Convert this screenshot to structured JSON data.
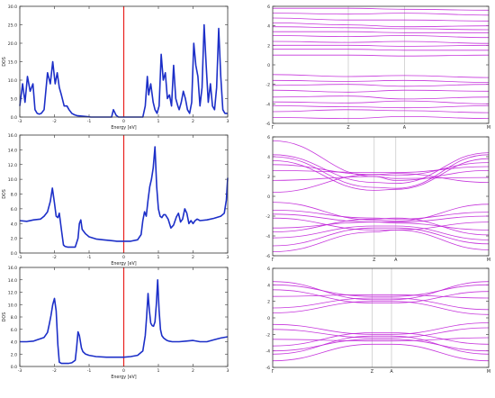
{
  "figure": {
    "name": "dos-and-band-structure-figure"
  },
  "chart_data": [
    {
      "id": "dos-1",
      "type": "line",
      "ylabel": "DOS",
      "xlabel": "Energy [eV]",
      "xlim": [
        -3,
        3
      ],
      "ylim": [
        0,
        30
      ],
      "xticks": [
        -3,
        -2,
        -1,
        0,
        1,
        2,
        3
      ],
      "yticks": [
        0.0,
        5.0,
        10.0,
        15.0,
        20.0,
        25.0,
        30.0
      ],
      "ytick_labels": [
        "0.0",
        "5.0",
        "10.0",
        "15.0",
        "20.0",
        "25.0",
        "30.0"
      ],
      "fermi_level": 0,
      "fermi_color": "#e8201c",
      "line_color": "#1c2fc8",
      "series": [
        {
          "x": [
            -3.0,
            -2.92,
            -2.85,
            -2.78,
            -2.7,
            -2.62,
            -2.56,
            -2.5,
            -2.44,
            -2.38,
            -2.3,
            -2.2,
            -2.12,
            -2.05,
            -1.98,
            -1.92,
            -1.86,
            -1.8,
            -1.72,
            -1.64,
            -1.58,
            -1.5,
            -1.42,
            -1.35,
            -1.25,
            -1.15,
            -1.05,
            -0.95,
            -0.85,
            -0.75,
            -0.65,
            -0.55,
            -0.45,
            -0.35,
            -0.3,
            -0.22,
            -0.15,
            -0.1,
            0.0,
            0.2,
            0.4,
            0.55,
            0.62,
            0.68,
            0.72,
            0.78,
            0.85,
            0.9,
            0.96,
            1.02,
            1.08,
            1.14,
            1.2,
            1.26,
            1.32,
            1.38,
            1.44,
            1.5,
            1.56,
            1.6,
            1.66,
            1.72,
            1.78,
            1.84,
            1.9,
            1.96,
            2.02,
            2.08,
            2.14,
            2.2,
            2.26,
            2.32,
            2.38,
            2.44,
            2.5,
            2.56,
            2.62,
            2.68,
            2.74,
            2.8,
            2.86,
            2.92,
            3.0
          ],
          "y": [
            3,
            9,
            4,
            11,
            7,
            9,
            2,
            1,
            0.8,
            1,
            2,
            12,
            9,
            15,
            9,
            12,
            8,
            6,
            3,
            3,
            2,
            1,
            0.6,
            0.4,
            0.3,
            0.2,
            0.1,
            0,
            0,
            0,
            0,
            0,
            0,
            0,
            2,
            0.5,
            0,
            0,
            0,
            0,
            0,
            0,
            3,
            11,
            6,
            9,
            4,
            2,
            1,
            3,
            17,
            10,
            12,
            5,
            6,
            3,
            14,
            5,
            3,
            2,
            4,
            7,
            5,
            2,
            1,
            4,
            20,
            14,
            11,
            3,
            8,
            25,
            14,
            4,
            9,
            3,
            2,
            8,
            24,
            11,
            2,
            1,
            1
          ]
        }
      ]
    },
    {
      "id": "dos-2",
      "type": "line",
      "ylabel": "DOS",
      "xlabel": "Energy [eV]",
      "xlim": [
        -3,
        3
      ],
      "ylim": [
        0,
        16
      ],
      "xticks": [
        -3,
        -2,
        -1,
        0,
        1,
        2,
        3
      ],
      "yticks": [
        0.0,
        2.0,
        4.0,
        6.0,
        8.0,
        10.0,
        12.0,
        14.0,
        16.0
      ],
      "ytick_labels": [
        "0.0",
        "2.0",
        "4.0",
        "6.0",
        "8.0",
        "10.0",
        "12.0",
        "14.0",
        "16.0"
      ],
      "fermi_level": 0,
      "fermi_color": "#e8201c",
      "line_color": "#1c2fc8",
      "series": [
        {
          "x": [
            -3.0,
            -2.8,
            -2.6,
            -2.4,
            -2.3,
            -2.2,
            -2.12,
            -2.06,
            -2.0,
            -1.95,
            -1.9,
            -1.86,
            -1.8,
            -1.74,
            -1.7,
            -1.62,
            -1.5,
            -1.4,
            -1.32,
            -1.28,
            -1.24,
            -1.2,
            -1.1,
            -1.0,
            -0.8,
            -0.6,
            -0.4,
            -0.2,
            0.0,
            0.2,
            0.4,
            0.5,
            0.55,
            0.6,
            0.65,
            0.7,
            0.75,
            0.8,
            0.85,
            0.9,
            0.95,
            1.0,
            1.05,
            1.1,
            1.15,
            1.2,
            1.28,
            1.36,
            1.44,
            1.52,
            1.58,
            1.64,
            1.7,
            1.76,
            1.82,
            1.88,
            1.94,
            2.0,
            2.06,
            2.12,
            2.2,
            2.4,
            2.6,
            2.8,
            2.9,
            2.96,
            3.0
          ],
          "y": [
            4.4,
            4.3,
            4.5,
            4.6,
            5.0,
            5.6,
            7.0,
            8.8,
            6.8,
            5.0,
            4.8,
            5.4,
            3.2,
            1.1,
            0.9,
            0.8,
            0.8,
            0.8,
            2.0,
            4.0,
            4.5,
            3.2,
            2.6,
            2.2,
            1.9,
            1.8,
            1.7,
            1.6,
            1.6,
            1.6,
            1.8,
            2.5,
            4.4,
            5.6,
            5.0,
            7.2,
            9.0,
            10.0,
            11.5,
            14.4,
            9.0,
            6.0,
            5.0,
            4.8,
            5.2,
            5.2,
            4.6,
            3.4,
            3.8,
            4.9,
            5.4,
            4.2,
            4.6,
            6.0,
            5.4,
            4.0,
            4.4,
            4.0,
            4.4,
            4.6,
            4.4,
            4.5,
            4.7,
            5.0,
            5.4,
            7.2,
            10.2
          ]
        }
      ]
    },
    {
      "id": "dos-3",
      "type": "line",
      "ylabel": "DOS",
      "xlabel": "Energy [eV]",
      "xlim": [
        -3,
        3
      ],
      "ylim": [
        0,
        16
      ],
      "xticks": [
        -3,
        -2,
        -1,
        0,
        1,
        2,
        3
      ],
      "yticks": [
        0.0,
        2.0,
        4.0,
        6.0,
        8.0,
        10.0,
        12.0,
        14.0,
        16.0
      ],
      "ytick_labels": [
        "0.0",
        "2.0",
        "4.0",
        "6.0",
        "8.0",
        "10.0",
        "12.0",
        "14.0",
        "16.0"
      ],
      "fermi_level": 0,
      "fermi_color": "#e8201c",
      "line_color": "#1c2fc8",
      "series": [
        {
          "x": [
            -3.0,
            -2.8,
            -2.6,
            -2.5,
            -2.4,
            -2.3,
            -2.2,
            -2.15,
            -2.1,
            -2.05,
            -2.0,
            -1.95,
            -1.9,
            -1.86,
            -1.8,
            -1.7,
            -1.6,
            -1.5,
            -1.4,
            -1.36,
            -1.32,
            -1.28,
            -1.22,
            -1.18,
            -1.1,
            -1.0,
            -0.8,
            -0.5,
            -0.2,
            0.0,
            0.2,
            0.4,
            0.55,
            0.62,
            0.66,
            0.7,
            0.74,
            0.78,
            0.82,
            0.86,
            0.9,
            0.94,
            0.98,
            1.02,
            1.06,
            1.1,
            1.15,
            1.2,
            1.25,
            1.3,
            1.4,
            1.6,
            1.8,
            2.0,
            2.2,
            2.4,
            2.6,
            2.8,
            3.0
          ],
          "y": [
            4.0,
            4.0,
            4.1,
            4.3,
            4.5,
            4.7,
            5.5,
            6.8,
            8.2,
            10.0,
            11.0,
            9.0,
            3.5,
            0.7,
            0.5,
            0.5,
            0.5,
            0.6,
            1.0,
            3.0,
            5.6,
            5.0,
            3.0,
            2.4,
            2.0,
            1.8,
            1.6,
            1.5,
            1.5,
            1.5,
            1.6,
            1.8,
            2.5,
            5.0,
            8.0,
            11.8,
            9.0,
            7.0,
            6.6,
            6.5,
            7.2,
            10.0,
            14.0,
            9.0,
            6.0,
            5.0,
            4.6,
            4.4,
            4.2,
            4.1,
            4.0,
            4.0,
            4.1,
            4.2,
            4.0,
            4.0,
            4.3,
            4.6,
            4.8
          ]
        }
      ]
    },
    {
      "id": "bands-1",
      "type": "line",
      "xlabel": "",
      "ylabel": "",
      "ylim": [
        -6,
        6
      ],
      "yticks": [
        -6,
        -4,
        -2,
        0,
        2,
        4,
        6
      ],
      "kpath_labels": [
        "Γ",
        "Z",
        "A",
        "M"
      ],
      "kpath_positions": [
        0.0,
        0.35,
        0.61,
        1.0
      ],
      "line_color": "#c020d8",
      "band_energies_at_kpoints": [
        [
          5.8,
          5.8,
          5.7,
          5.6
        ],
        [
          5.3,
          5.2,
          5.3,
          5.1
        ],
        [
          4.8,
          4.6,
          4.6,
          4.5
        ],
        [
          4.3,
          4.1,
          3.9,
          4.0
        ],
        [
          3.9,
          3.8,
          3.7,
          3.6
        ],
        [
          3.4,
          3.4,
          3.3,
          3.3
        ],
        [
          3.0,
          2.9,
          3.0,
          2.8
        ],
        [
          2.4,
          2.3,
          2.4,
          2.2
        ],
        [
          2.0,
          2.0,
          1.9,
          2.0
        ],
        [
          1.6,
          1.6,
          1.5,
          1.5
        ],
        [
          1.0,
          1.0,
          0.9,
          1.0
        ],
        [
          -1.0,
          -1.2,
          -1.1,
          -1.3
        ],
        [
          -1.6,
          -1.7,
          -1.6,
          -1.8
        ],
        [
          -2.1,
          -2.0,
          -2.2,
          -2.0
        ],
        [
          -2.6,
          -2.8,
          -2.6,
          -2.7
        ],
        [
          -3.3,
          -3.2,
          -3.5,
          -3.3
        ],
        [
          -3.8,
          -3.9,
          -3.7,
          -4.0
        ],
        [
          -4.2,
          -4.3,
          -4.4,
          -4.2
        ],
        [
          -4.8,
          -4.6,
          -4.7,
          -4.9
        ],
        [
          -5.4,
          -5.5,
          -5.3,
          -5.5
        ]
      ]
    },
    {
      "id": "bands-2",
      "type": "line",
      "xlabel": "",
      "ylabel": "",
      "ylim": [
        -6,
        6
      ],
      "yticks": [
        -6,
        -4,
        -2,
        0,
        2,
        4,
        6
      ],
      "kpath_labels": [
        "Γ",
        "Z",
        "A",
        "M"
      ],
      "kpath_positions": [
        0.0,
        0.47,
        0.57,
        1.0
      ],
      "line_color": "#c020d8",
      "band_energies_at_kpoints": [
        [
          4.2,
          1.4,
          1.3,
          4.4
        ],
        [
          4.0,
          0.9,
          0.8,
          4.2
        ],
        [
          3.6,
          0.6,
          0.7,
          3.8
        ],
        [
          3.2,
          2.2,
          2.1,
          3.4
        ],
        [
          2.6,
          2.4,
          2.4,
          3.0
        ],
        [
          5.6,
          2.0,
          1.6,
          2.6
        ],
        [
          1.6,
          2.0,
          1.8,
          1.9
        ],
        [
          0.4,
          2.2,
          2.3,
          1.4
        ],
        [
          -0.6,
          -2.4,
          -2.5,
          -0.8
        ],
        [
          -1.4,
          -2.2,
          -2.3,
          -1.6
        ],
        [
          -1.8,
          -2.6,
          -2.6,
          -2.0
        ],
        [
          -2.2,
          -3.4,
          -3.4,
          -2.6
        ],
        [
          -3.2,
          -2.6,
          -2.7,
          -3.4
        ],
        [
          -3.6,
          -2.3,
          -2.2,
          -3.9
        ],
        [
          -4.2,
          -3.0,
          -3.0,
          -4.4
        ],
        [
          -5.0,
          -3.2,
          -3.2,
          -4.8
        ],
        [
          -5.6,
          -3.6,
          -3.4,
          -5.4
        ]
      ]
    },
    {
      "id": "bands-3",
      "type": "line",
      "xlabel": "",
      "ylabel": "",
      "ylim": [
        -6,
        6
      ],
      "yticks": [
        -6,
        -4,
        -2,
        0,
        2,
        4,
        6
      ],
      "kpath_labels": [
        "Γ",
        "Z",
        "A",
        "M"
      ],
      "kpath_positions": [
        0.0,
        0.46,
        0.55,
        1.0
      ],
      "line_color": "#c020d8",
      "band_energies_at_kpoints": [
        [
          4.4,
          2.2,
          2.2,
          4.4
        ],
        [
          4.0,
          2.6,
          2.6,
          4.0
        ],
        [
          3.4,
          1.8,
          1.8,
          3.2
        ],
        [
          2.6,
          2.8,
          2.8,
          2.4
        ],
        [
          1.2,
          2.4,
          2.4,
          1.0
        ],
        [
          0.6,
          2.0,
          2.0,
          0.4
        ],
        [
          -0.8,
          -2.0,
          -2.0,
          -0.6
        ],
        [
          -1.4,
          -2.4,
          -2.4,
          -1.2
        ],
        [
          -2.6,
          -2.8,
          -2.8,
          -2.4
        ],
        [
          -3.4,
          -1.8,
          -1.8,
          -3.2
        ],
        [
          -4.0,
          -2.6,
          -2.6,
          -4.0
        ],
        [
          -4.4,
          -2.2,
          -2.2,
          -4.4
        ],
        [
          -5.2,
          -3.2,
          -3.2,
          -5.2
        ]
      ]
    }
  ]
}
